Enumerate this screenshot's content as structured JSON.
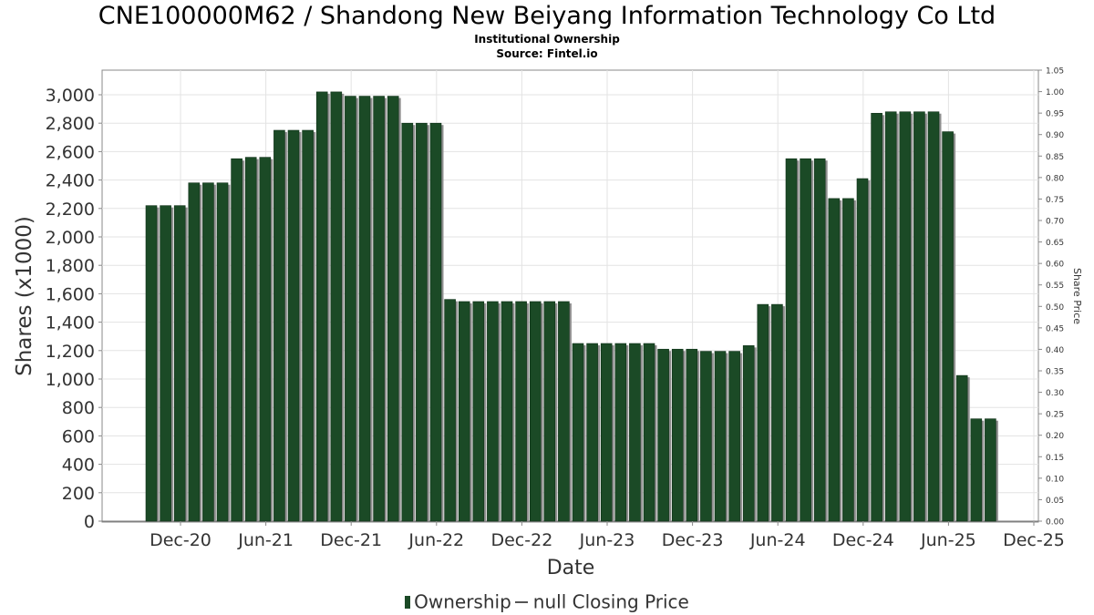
{
  "chart_data": {
    "type": "bar",
    "title": "CNE100000M62 / Shandong New Beiyang Information Technology Co Ltd",
    "subtitle": "Institutional Ownership",
    "source": "Source: Fintel.io",
    "xlabel": "Date",
    "ylabel": "Shares (x1000)",
    "y2label": "Share Price",
    "ylim": [
      0,
      3150
    ],
    "y2lim": [
      0,
      1.05
    ],
    "yticks": [
      0,
      200,
      400,
      600,
      800,
      1000,
      1200,
      1400,
      1600,
      1800,
      2000,
      2200,
      2400,
      2600,
      2800,
      3000
    ],
    "yticklabels": [
      "0",
      "200",
      "400",
      "600",
      "800",
      "1,000",
      "1,200",
      "1,400",
      "1,600",
      "1,800",
      "2,000",
      "2,200",
      "2,400",
      "2,600",
      "2,800",
      "3,000"
    ],
    "y2ticklabels": [
      "0.00",
      "0.05",
      "0.10",
      "0.15",
      "0.20",
      "0.25",
      "0.30",
      "0.35",
      "0.40",
      "0.45",
      "0.50",
      "0.55",
      "0.60",
      "0.65",
      "0.70",
      "0.75",
      "0.80",
      "0.85",
      "0.90",
      "0.95",
      "1.00",
      "1.05"
    ],
    "xticklabels": [
      "Dec-20",
      "Jun-21",
      "Dec-21",
      "Jun-22",
      "Dec-22",
      "Jun-23",
      "Dec-23",
      "Jun-24",
      "Dec-24",
      "Jun-25",
      "Dec-25"
    ],
    "grid": true,
    "legend_position": "bottom",
    "series": [
      {
        "name": "Ownership",
        "color": "#1b4a26",
        "values": [
          2220,
          2220,
          2220,
          2380,
          2380,
          2380,
          2550,
          2560,
          2560,
          2750,
          2750,
          2750,
          3020,
          3020,
          2990,
          2990,
          2990,
          2990,
          2800,
          2800,
          2800,
          1560,
          1545,
          1545,
          1545,
          1545,
          1545,
          1545,
          1545,
          1545,
          1250,
          1250,
          1250,
          1250,
          1250,
          1250,
          1210,
          1210,
          1210,
          1195,
          1195,
          1195,
          1235,
          1525,
          1525,
          2550,
          2550,
          2550,
          2270,
          2270,
          2410,
          2870,
          2880,
          2880,
          2880,
          2880,
          2740,
          1025,
          720,
          720
        ]
      },
      {
        "name": "null Closing Price",
        "color": "#555555",
        "values": []
      }
    ]
  },
  "legend": {
    "ownership_label": "Ownership",
    "price_label": "null Closing Price"
  }
}
